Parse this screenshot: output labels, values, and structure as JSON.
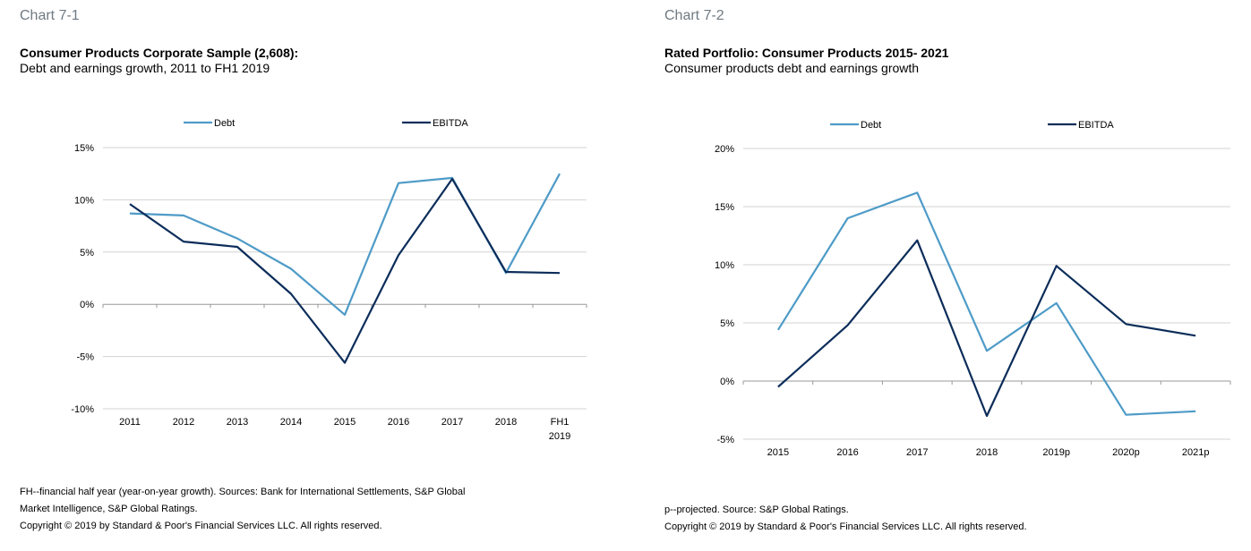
{
  "colors": {
    "debt": "#4e9bc7",
    "ebitda": "#0c2d5a",
    "grid": "#d3d3d3",
    "axis": "#999999"
  },
  "chart_data": [
    {
      "type": "line",
      "label": "Chart 7-1",
      "title": "Consumer Products Corporate Sample (2,608):",
      "subtitle": "Debt and earnings growth, 2011 to FH1 2019",
      "categories": [
        "2011",
        "2012",
        "2013",
        "2014",
        "2015",
        "2016",
        "2017",
        "2018",
        "FH1\n2019"
      ],
      "category_lines": [
        [
          "2011"
        ],
        [
          "2012"
        ],
        [
          "2013"
        ],
        [
          "2014"
        ],
        [
          "2015"
        ],
        [
          "2016"
        ],
        [
          "2017"
        ],
        [
          "2018"
        ],
        [
          "FH1",
          "2019"
        ]
      ],
      "series": [
        {
          "name": "Debt",
          "color": "#4e9bc7",
          "values": [
            8.7,
            8.5,
            6.3,
            3.4,
            -1.0,
            11.6,
            12.1,
            3.0,
            12.5
          ]
        },
        {
          "name": "EBITDA",
          "color": "#0c2d5a",
          "values": [
            9.6,
            6.0,
            5.5,
            1.0,
            -5.6,
            4.7,
            12.0,
            3.1,
            3.0
          ]
        }
      ],
      "yticks": [
        -10,
        -5,
        0,
        5,
        10,
        15
      ],
      "ytick_labels": [
        "-10%",
        "-5%",
        "0%",
        "5%",
        "10%",
        "15%"
      ],
      "ylim": [
        -10,
        15
      ],
      "grid": true,
      "legend": "top",
      "footnote_lines": [
        "FH--financial half year (year-on-year growth). Sources: Bank for International Settlements, S&P Global",
        "Market Intelligence, S&P Global Ratings."
      ],
      "copyright": "Copyright © 2019 by Standard & Poor's Financial Services LLC. All rights reserved."
    },
    {
      "type": "line",
      "label": "Chart 7-2",
      "title": "Rated Portfolio: Consumer Products 2015- 2021",
      "subtitle": "Consumer products debt and earnings growth",
      "categories": [
        "2015",
        "2016",
        "2017",
        "2018",
        "2019p",
        "2020p",
        "2021p"
      ],
      "category_lines": [
        [
          "2015"
        ],
        [
          "2016"
        ],
        [
          "2017"
        ],
        [
          "2018"
        ],
        [
          "2019p"
        ],
        [
          "2020p"
        ],
        [
          "2021p"
        ]
      ],
      "series": [
        {
          "name": "Debt",
          "color": "#4e9bc7",
          "values": [
            4.4,
            14.0,
            16.2,
            2.6,
            6.7,
            -2.9,
            -2.6
          ]
        },
        {
          "name": "EBITDA",
          "color": "#0c2d5a",
          "values": [
            -0.5,
            4.8,
            12.1,
            -3.0,
            9.9,
            4.9,
            3.9
          ]
        }
      ],
      "yticks": [
        -5,
        0,
        5,
        10,
        15,
        20
      ],
      "ytick_labels": [
        "-5%",
        "0%",
        "5%",
        "10%",
        "15%",
        "20%"
      ],
      "ylim": [
        -5,
        20
      ],
      "grid": true,
      "legend": "top",
      "footnote_lines": [
        "p--projected. Source: S&P Global Ratings."
      ],
      "copyright": "Copyright © 2019 by Standard & Poor's Financial Services LLC. All rights reserved."
    }
  ]
}
